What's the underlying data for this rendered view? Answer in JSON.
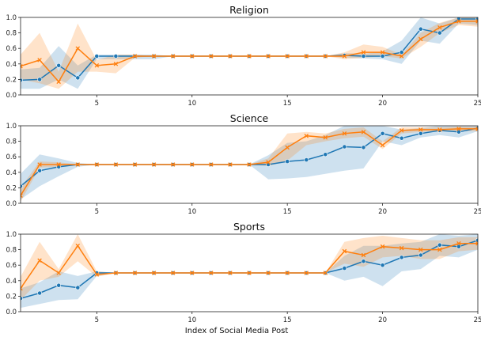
{
  "chart_data": [
    {
      "type": "line",
      "title": "Religion",
      "x": [
        1,
        2,
        3,
        4,
        5,
        6,
        7,
        8,
        9,
        10,
        11,
        12,
        13,
        14,
        15,
        16,
        17,
        18,
        19,
        20,
        21,
        22,
        23,
        24,
        25
      ],
      "xlim": [
        1,
        25
      ],
      "ylim": [
        0,
        1
      ],
      "xticks": [
        5,
        10,
        15,
        20,
        25
      ],
      "yticks": [
        "0.0",
        "0.2",
        "0.4",
        "0.6",
        "0.8",
        "1.0"
      ],
      "series": [
        {
          "color": "#1f77b4",
          "marker": "circle",
          "values": [
            0.19,
            0.2,
            0.38,
            0.22,
            0.5,
            0.5,
            0.5,
            0.5,
            0.5,
            0.5,
            0.5,
            0.5,
            0.5,
            0.5,
            0.5,
            0.5,
            0.5,
            0.51,
            0.5,
            0.5,
            0.55,
            0.85,
            0.8,
            0.98,
            0.98
          ],
          "lower": [
            0.08,
            0.08,
            0.2,
            0.08,
            0.46,
            0.46,
            0.46,
            0.46,
            0.5,
            0.5,
            0.5,
            0.5,
            0.5,
            0.5,
            0.5,
            0.5,
            0.5,
            0.48,
            0.47,
            0.46,
            0.4,
            0.7,
            0.66,
            0.92,
            0.9
          ],
          "upper": [
            0.33,
            0.35,
            0.63,
            0.38,
            0.52,
            0.52,
            0.52,
            0.52,
            0.5,
            0.5,
            0.5,
            0.5,
            0.5,
            0.5,
            0.5,
            0.5,
            0.5,
            0.54,
            0.53,
            0.56,
            0.7,
            1.0,
            0.92,
            1.0,
            1.0
          ]
        },
        {
          "color": "#ff7f0e",
          "marker": "x",
          "values": [
            0.37,
            0.45,
            0.17,
            0.6,
            0.38,
            0.4,
            0.5,
            0.5,
            0.5,
            0.5,
            0.5,
            0.5,
            0.5,
            0.5,
            0.5,
            0.5,
            0.5,
            0.5,
            0.55,
            0.55,
            0.5,
            0.72,
            0.87,
            0.95,
            0.95
          ],
          "lower": [
            0.2,
            0.15,
            0.08,
            0.3,
            0.3,
            0.28,
            0.48,
            0.5,
            0.5,
            0.5,
            0.5,
            0.5,
            0.5,
            0.5,
            0.5,
            0.5,
            0.5,
            0.46,
            0.48,
            0.5,
            0.47,
            0.62,
            0.8,
            0.9,
            0.88
          ],
          "upper": [
            0.52,
            0.8,
            0.3,
            0.92,
            0.45,
            0.52,
            0.52,
            0.5,
            0.5,
            0.5,
            0.5,
            0.5,
            0.5,
            0.5,
            0.5,
            0.5,
            0.5,
            0.55,
            0.65,
            0.62,
            0.52,
            0.8,
            0.93,
            1.0,
            1.0
          ]
        }
      ]
    },
    {
      "type": "line",
      "title": "Science",
      "x": [
        1,
        2,
        3,
        4,
        5,
        6,
        7,
        8,
        9,
        10,
        11,
        12,
        13,
        14,
        15,
        16,
        17,
        18,
        19,
        20,
        21,
        22,
        23,
        24,
        25
      ],
      "xlim": [
        1,
        25
      ],
      "ylim": [
        0,
        1
      ],
      "xticks": [
        5,
        10,
        15,
        20,
        25
      ],
      "yticks": [
        "0.0",
        "0.2",
        "0.4",
        "0.6",
        "0.8",
        "1.0"
      ],
      "series": [
        {
          "color": "#1f77b4",
          "marker": "circle",
          "values": [
            0.22,
            0.42,
            0.47,
            0.5,
            0.5,
            0.5,
            0.5,
            0.5,
            0.5,
            0.5,
            0.5,
            0.5,
            0.5,
            0.5,
            0.54,
            0.56,
            0.63,
            0.73,
            0.72,
            0.9,
            0.84,
            0.9,
            0.94,
            0.92,
            0.97
          ],
          "lower": [
            0.05,
            0.22,
            0.35,
            0.47,
            0.5,
            0.5,
            0.5,
            0.5,
            0.5,
            0.5,
            0.5,
            0.5,
            0.5,
            0.31,
            0.32,
            0.34,
            0.38,
            0.42,
            0.45,
            0.8,
            0.75,
            0.85,
            0.88,
            0.85,
            0.93
          ],
          "upper": [
            0.38,
            0.63,
            0.58,
            0.52,
            0.5,
            0.5,
            0.5,
            0.5,
            0.5,
            0.5,
            0.5,
            0.5,
            0.5,
            0.62,
            0.78,
            0.8,
            0.88,
            1.0,
            1.0,
            1.0,
            0.95,
            0.97,
            1.0,
            1.0,
            1.0
          ]
        },
        {
          "color": "#ff7f0e",
          "marker": "x",
          "values": [
            0.1,
            0.5,
            0.5,
            0.5,
            0.5,
            0.5,
            0.5,
            0.5,
            0.5,
            0.5,
            0.5,
            0.5,
            0.5,
            0.53,
            0.72,
            0.87,
            0.85,
            0.9,
            0.92,
            0.75,
            0.94,
            0.95,
            0.95,
            0.96,
            0.96
          ],
          "lower": [
            0.02,
            0.46,
            0.47,
            0.5,
            0.5,
            0.5,
            0.5,
            0.5,
            0.5,
            0.5,
            0.5,
            0.5,
            0.5,
            0.48,
            0.55,
            0.75,
            0.8,
            0.84,
            0.86,
            0.7,
            0.9,
            0.92,
            0.93,
            0.93,
            0.93
          ],
          "upper": [
            0.2,
            0.54,
            0.53,
            0.5,
            0.5,
            0.5,
            0.5,
            0.5,
            0.5,
            0.5,
            0.5,
            0.5,
            0.5,
            0.58,
            0.9,
            0.92,
            0.9,
            0.96,
            0.98,
            0.8,
            0.98,
            0.98,
            0.98,
            0.99,
            0.99
          ]
        }
      ]
    },
    {
      "type": "line",
      "title": "Sports",
      "xlabel": "Index of Social Media Post",
      "x": [
        1,
        2,
        3,
        4,
        5,
        6,
        7,
        8,
        9,
        10,
        11,
        12,
        13,
        14,
        15,
        16,
        17,
        18,
        19,
        20,
        21,
        22,
        23,
        24,
        25
      ],
      "xlim": [
        1,
        25
      ],
      "ylim": [
        0,
        1
      ],
      "xticks": [
        5,
        10,
        15,
        20,
        25
      ],
      "yticks": [
        "0.0",
        "0.2",
        "0.4",
        "0.6",
        "0.8",
        "1.0"
      ],
      "series": [
        {
          "color": "#1f77b4",
          "marker": "circle",
          "values": [
            0.17,
            0.24,
            0.34,
            0.31,
            0.5,
            0.5,
            0.5,
            0.5,
            0.5,
            0.5,
            0.5,
            0.5,
            0.5,
            0.5,
            0.5,
            0.5,
            0.5,
            0.56,
            0.65,
            0.6,
            0.7,
            0.73,
            0.86,
            0.84,
            0.92
          ],
          "lower": [
            0.05,
            0.1,
            0.15,
            0.16,
            0.46,
            0.5,
            0.5,
            0.5,
            0.5,
            0.5,
            0.5,
            0.5,
            0.5,
            0.5,
            0.5,
            0.5,
            0.5,
            0.4,
            0.45,
            0.33,
            0.52,
            0.55,
            0.72,
            0.7,
            0.8
          ],
          "upper": [
            0.3,
            0.38,
            0.52,
            0.46,
            0.52,
            0.5,
            0.5,
            0.5,
            0.5,
            0.5,
            0.5,
            0.5,
            0.5,
            0.5,
            0.5,
            0.5,
            0.5,
            0.72,
            0.85,
            0.85,
            0.88,
            0.9,
            1.0,
            0.98,
            1.0
          ]
        },
        {
          "color": "#ff7f0e",
          "marker": "x",
          "values": [
            0.3,
            0.66,
            0.5,
            0.85,
            0.48,
            0.5,
            0.5,
            0.5,
            0.5,
            0.5,
            0.5,
            0.5,
            0.5,
            0.5,
            0.5,
            0.5,
            0.5,
            0.78,
            0.73,
            0.84,
            0.82,
            0.8,
            0.8,
            0.88,
            0.88
          ],
          "lower": [
            0.15,
            0.4,
            0.45,
            0.65,
            0.45,
            0.5,
            0.5,
            0.5,
            0.5,
            0.5,
            0.5,
            0.5,
            0.5,
            0.5,
            0.5,
            0.5,
            0.5,
            0.62,
            0.58,
            0.7,
            0.72,
            0.68,
            0.68,
            0.78,
            0.8
          ],
          "upper": [
            0.45,
            0.9,
            0.55,
            1.0,
            0.52,
            0.5,
            0.5,
            0.5,
            0.5,
            0.5,
            0.5,
            0.5,
            0.5,
            0.5,
            0.5,
            0.5,
            0.5,
            0.9,
            0.95,
            0.98,
            0.95,
            0.92,
            0.92,
            0.96,
            0.96
          ]
        }
      ]
    }
  ]
}
